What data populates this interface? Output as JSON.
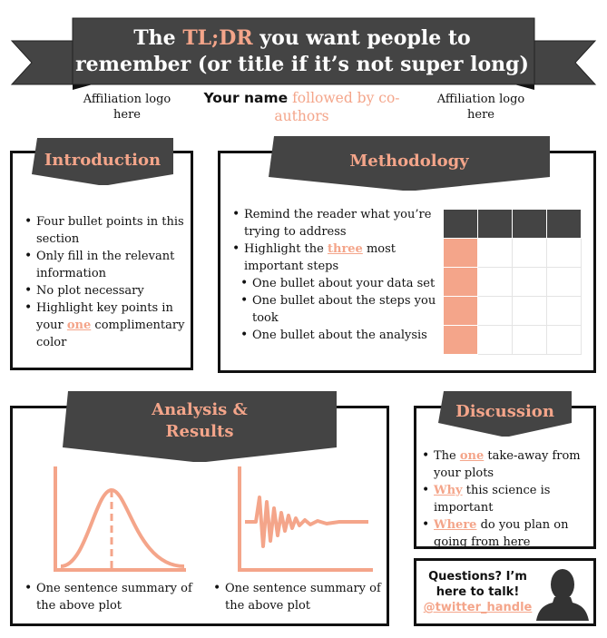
{
  "header": {
    "title_prefix": "The ",
    "title_highlight": "TL;DR",
    "title_rest": " you want people to remember (or title if it’s not super long)",
    "affiliation_left": "Affiliation logo here",
    "affiliation_right": "Affiliation logo here",
    "author_name": "Your name",
    "coauthors": " followed by co-authors"
  },
  "introduction": {
    "heading": "Introduction",
    "bullets": [
      "Four bullet points in this section",
      "Only fill in the relevant information",
      "No plot necessary"
    ],
    "bullet4_pre": "Highlight key points in your ",
    "bullet4_em": "one",
    "bullet4_post": " complimentary color"
  },
  "methodology": {
    "heading": "Methodology",
    "b1": "Remind the reader what you’re trying to address",
    "b2_pre": "Highlight the ",
    "b2_em": "three",
    "b2_post": " most important steps",
    "subs": [
      "One bullet about your data set",
      "One bullet about the steps you took",
      "One bullet about the analysis"
    ]
  },
  "analysis": {
    "heading_line1": "Analysis &",
    "heading_line2": "Results",
    "summary_left": "One sentence summary of the above plot",
    "summary_right": "One sentence summary of the above plot"
  },
  "discussion": {
    "heading": "Discussion",
    "b1_pre": "The ",
    "b1_em": "one",
    "b1_post": " take-away from your plots",
    "b2_em": "Why",
    "b2_post": " this science is important",
    "b3_em": "Where",
    "b3_post": " do you plan on going from here"
  },
  "contact": {
    "question": "Questions? I’m here to talk!",
    "handle": "@twitter_handle"
  },
  "colors": {
    "accent": "#f4a58a",
    "dark": "#444444"
  }
}
